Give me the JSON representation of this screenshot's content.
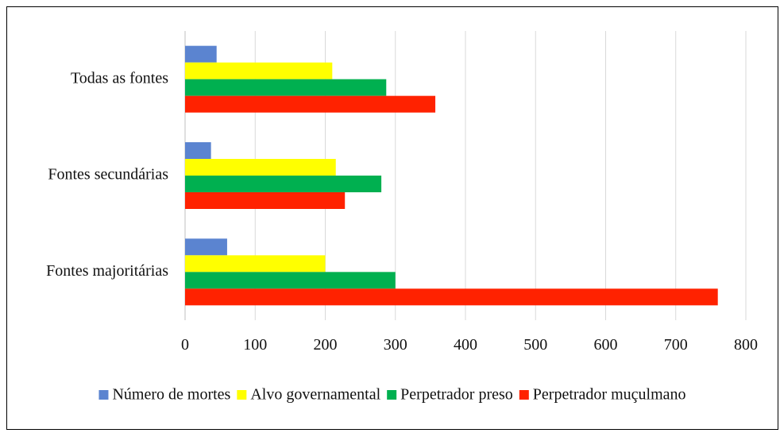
{
  "chart_data": {
    "type": "bar",
    "orientation": "horizontal",
    "categories": [
      "Todas as fontes",
      "Fontes secundárias",
      "Fontes majoritárias"
    ],
    "series": [
      {
        "name": "Número de mortes",
        "color": "#5B84D0",
        "values": [
          45,
          37,
          60
        ]
      },
      {
        "name": "Alvo governamental",
        "color": "#FFFF00",
        "values": [
          210,
          215,
          200
        ]
      },
      {
        "name": "Perpetrador preso",
        "color": "#00B050",
        "values": [
          287,
          280,
          300
        ]
      },
      {
        "name": "Perpetrador muçulmano",
        "color": "#FF2200",
        "values": [
          357,
          228,
          760
        ]
      }
    ],
    "xlim": [
      0,
      800
    ],
    "xticks": [
      0,
      100,
      200,
      300,
      400,
      500,
      600,
      700,
      800
    ],
    "xtick_labels": [
      "0",
      "100",
      "200",
      "300",
      "400",
      "500",
      "600",
      "700",
      "800"
    ],
    "grid": true,
    "legend_position": "bottom"
  }
}
